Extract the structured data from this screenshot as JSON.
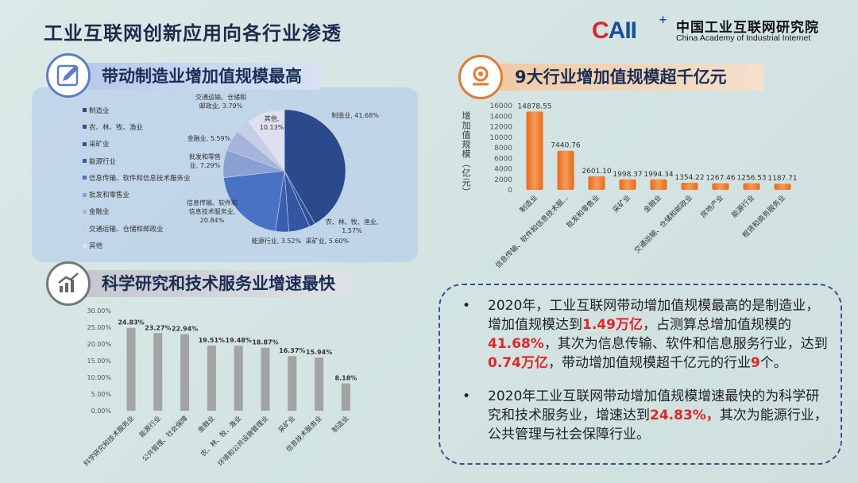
{
  "title": "工业互联网创新应用向各行业渗透",
  "logo": {
    "mark": "CAII",
    "plus": "+",
    "name_cn": "中国工业互联网研究院",
    "name_en": "China Academy of Industrial Internet",
    "colors": {
      "red": "#d42a2a",
      "blue": "#1d4e9a"
    }
  },
  "sections": {
    "s1": {
      "heading": "带动制造业增加值规模最高",
      "icon": "pencil-icon"
    },
    "s2": {
      "heading": "9大行业增加值规模超千亿元",
      "icon": "location-pin-icon"
    },
    "s3": {
      "heading": "科学研究和技术服务业增速最快",
      "icon": "bar-chart-growth-icon"
    }
  },
  "chart_data": [
    {
      "type": "pie",
      "legend_position": "left",
      "legend": [
        "制造业",
        "农、林、牧、渔业",
        "采矿业",
        "能源行业",
        "信息传输、软件和信息技术服务业",
        "批发和零售业",
        "金融业",
        "交通运输、仓储和邮政业",
        "其他"
      ],
      "slices": [
        {
          "name": "制造业",
          "value": 41.68,
          "color": "#2a4a8c",
          "label_lines": [
            "制造业, 41.68%"
          ]
        },
        {
          "name": "农、林、牧、渔业",
          "value": 1.57,
          "color": "#2e4f97",
          "label_lines": [
            "农、林、牧、渔业,",
            "1.57%"
          ]
        },
        {
          "name": "采矿业",
          "value": 5.6,
          "color": "#3456a2",
          "label_lines": [
            "采矿业, 5.60%"
          ]
        },
        {
          "name": "能源行业",
          "value": 3.52,
          "color": "#3a5eae",
          "label_lines": [
            "能源行业, 3.52%"
          ]
        },
        {
          "name": "信息传输、软件和信息技术服务业",
          "value": 20.84,
          "color": "#4a72c4",
          "label_lines": [
            "信息传输、软件和",
            "信息技术服务业,",
            "20.84%"
          ]
        },
        {
          "name": "批发和零售业",
          "value": 7.29,
          "color": "#8aa0d2",
          "label_lines": [
            "批发和零售",
            "业, 7.29%"
          ]
        },
        {
          "name": "金融业",
          "value": 5.59,
          "color": "#a6b4da",
          "label_lines": [
            "金融业, 5.59%"
          ]
        },
        {
          "name": "交通运输、仓储和邮政业",
          "value": 3.79,
          "color": "#c5cde7",
          "label_lines": [
            "交通运输、仓储和",
            "邮政业, 3.79%"
          ]
        },
        {
          "name": "其他",
          "value": 10.13,
          "color": "#dde0f0",
          "label_lines": [
            "其他,",
            "10.13%"
          ]
        }
      ]
    },
    {
      "type": "bar",
      "ylabel": "增加值规模（亿元）",
      "ylim": [
        0,
        16000
      ],
      "yticks": [
        "0",
        "2000",
        "4000",
        "6000",
        "8000",
        "10000",
        "12000",
        "14000",
        "16000"
      ],
      "color": "#ef7d30",
      "categories": [
        "制造业",
        "信息传输、软件和信息技术服...",
        "批发和零售业",
        "采矿业",
        "金融业",
        "交通运输、仓储和邮政业",
        "房地产业",
        "能源行业",
        "租赁和商务服务业"
      ],
      "values": [
        14878.55,
        7440.76,
        2601.1,
        1998.37,
        1994.34,
        1354.22,
        1267.46,
        1256.53,
        1187.71
      ],
      "data_labels": [
        "14878.55",
        "7440.76",
        "2601.10",
        "1998.37",
        "1994.34",
        "1354.22",
        "1267.46",
        "1256.53",
        "1187.71"
      ]
    },
    {
      "type": "bar",
      "ylim": [
        0,
        30
      ],
      "yticks": [
        "0.00%",
        "5.00%",
        "10.00%",
        "15.00%",
        "20.00%",
        "25.00%",
        "30.00%"
      ],
      "color": "#a3a3a3",
      "categories": [
        "科学研究和技术服务业",
        "能源行业",
        "公共管理、社会保障",
        "金融业",
        "农、林、牧、渔业",
        "环境和公共设施管理业",
        "采矿业",
        "信息技术服务业",
        "制造业"
      ],
      "values": [
        24.83,
        23.27,
        22.94,
        19.51,
        19.48,
        18.87,
        16.37,
        15.94,
        8.18
      ],
      "data_labels": [
        "24.83%",
        "23.27%",
        "22.94%",
        "19.51%",
        "19.48%",
        "18.87%",
        "16.37%",
        "15.94%",
        "8.18%"
      ]
    }
  ],
  "summary": {
    "highlight_color": "#e0262a",
    "bullets": [
      [
        {
          "t": "2020年，工业互联网带动增加值规模最高的是制造业，增加值规模达到"
        },
        {
          "t": "1.49万亿",
          "hl": true
        },
        {
          "t": "，占测算总增加值规模的"
        },
        {
          "t": "41.68%",
          "hl": true
        },
        {
          "t": "，其次为信息传输、软件和信息服务行业，达到"
        },
        {
          "t": "0.74万亿",
          "hl": true
        },
        {
          "t": "，带动增加值规模超千亿元的行业"
        },
        {
          "t": "9",
          "hl": true
        },
        {
          "t": "个。"
        }
      ],
      [
        {
          "t": "2020年工业互联网带动增加值规模增速最快的为科学研究和技术服务业，增速达到"
        },
        {
          "t": "24.83%，",
          "hl": true
        },
        {
          "t": "其次为能源行业，公共管理与社会保障行业。"
        }
      ]
    ]
  }
}
